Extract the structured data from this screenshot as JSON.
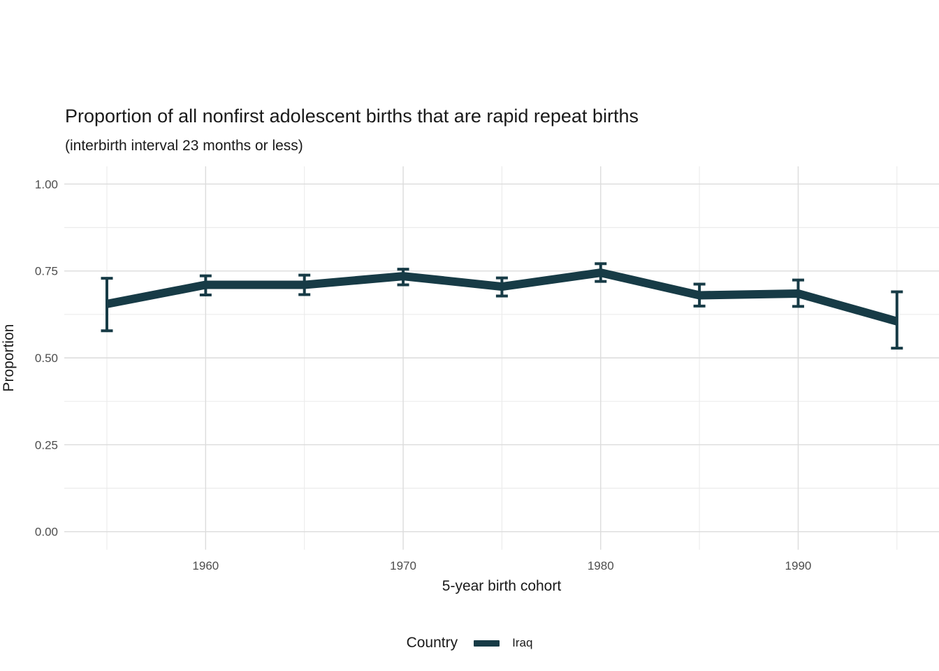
{
  "chart_data": {
    "type": "line",
    "title": "Proportion of all nonfirst adolescent births that are rapid repeat births",
    "subtitle": "(interbirth interval 23 months or less)",
    "xlabel": "5-year birth cohort",
    "ylabel": "Proportion",
    "x_tick_labels": [
      "1960",
      "1970",
      "1980",
      "1990"
    ],
    "x_tick_values": [
      1960,
      1970,
      1980,
      1990
    ],
    "x_minor_tick_values": [
      1955,
      1965,
      1975,
      1985,
      1995
    ],
    "y_tick_labels": [
      "0.00",
      "0.25",
      "0.50",
      "0.75",
      "1.00"
    ],
    "y_tick_values": [
      0,
      0.25,
      0.5,
      0.75,
      1
    ],
    "y_minor_tick_values": [
      0.125,
      0.375,
      0.625,
      0.875
    ],
    "xlim": [
      1952.9,
      1997.2
    ],
    "ylim": [
      0,
      1
    ],
    "grid": true,
    "legend": {
      "title": "Country",
      "position": "bottom",
      "entries": [
        {
          "label": "Iraq",
          "color": "#173b46"
        }
      ]
    },
    "series": [
      {
        "name": "Iraq",
        "color": "#173b46",
        "x": [
          1955,
          1960,
          1965,
          1970,
          1975,
          1980,
          1985,
          1990,
          1995
        ],
        "values": [
          0.655,
          0.71,
          0.71,
          0.735,
          0.705,
          0.745,
          0.68,
          0.685,
          0.605
        ],
        "ci_low": [
          0.578,
          0.681,
          0.682,
          0.71,
          0.678,
          0.72,
          0.649,
          0.648,
          0.528
        ],
        "ci_high": [
          0.729,
          0.736,
          0.738,
          0.755,
          0.73,
          0.771,
          0.712,
          0.724,
          0.69
        ]
      }
    ],
    "colors": {
      "line": "#173b46",
      "grid_major": "#dcdcdc",
      "grid_minor": "#ececec",
      "tick_text": "#4d4d4d",
      "text": "#1a1a1a",
      "background": "#ffffff"
    }
  }
}
